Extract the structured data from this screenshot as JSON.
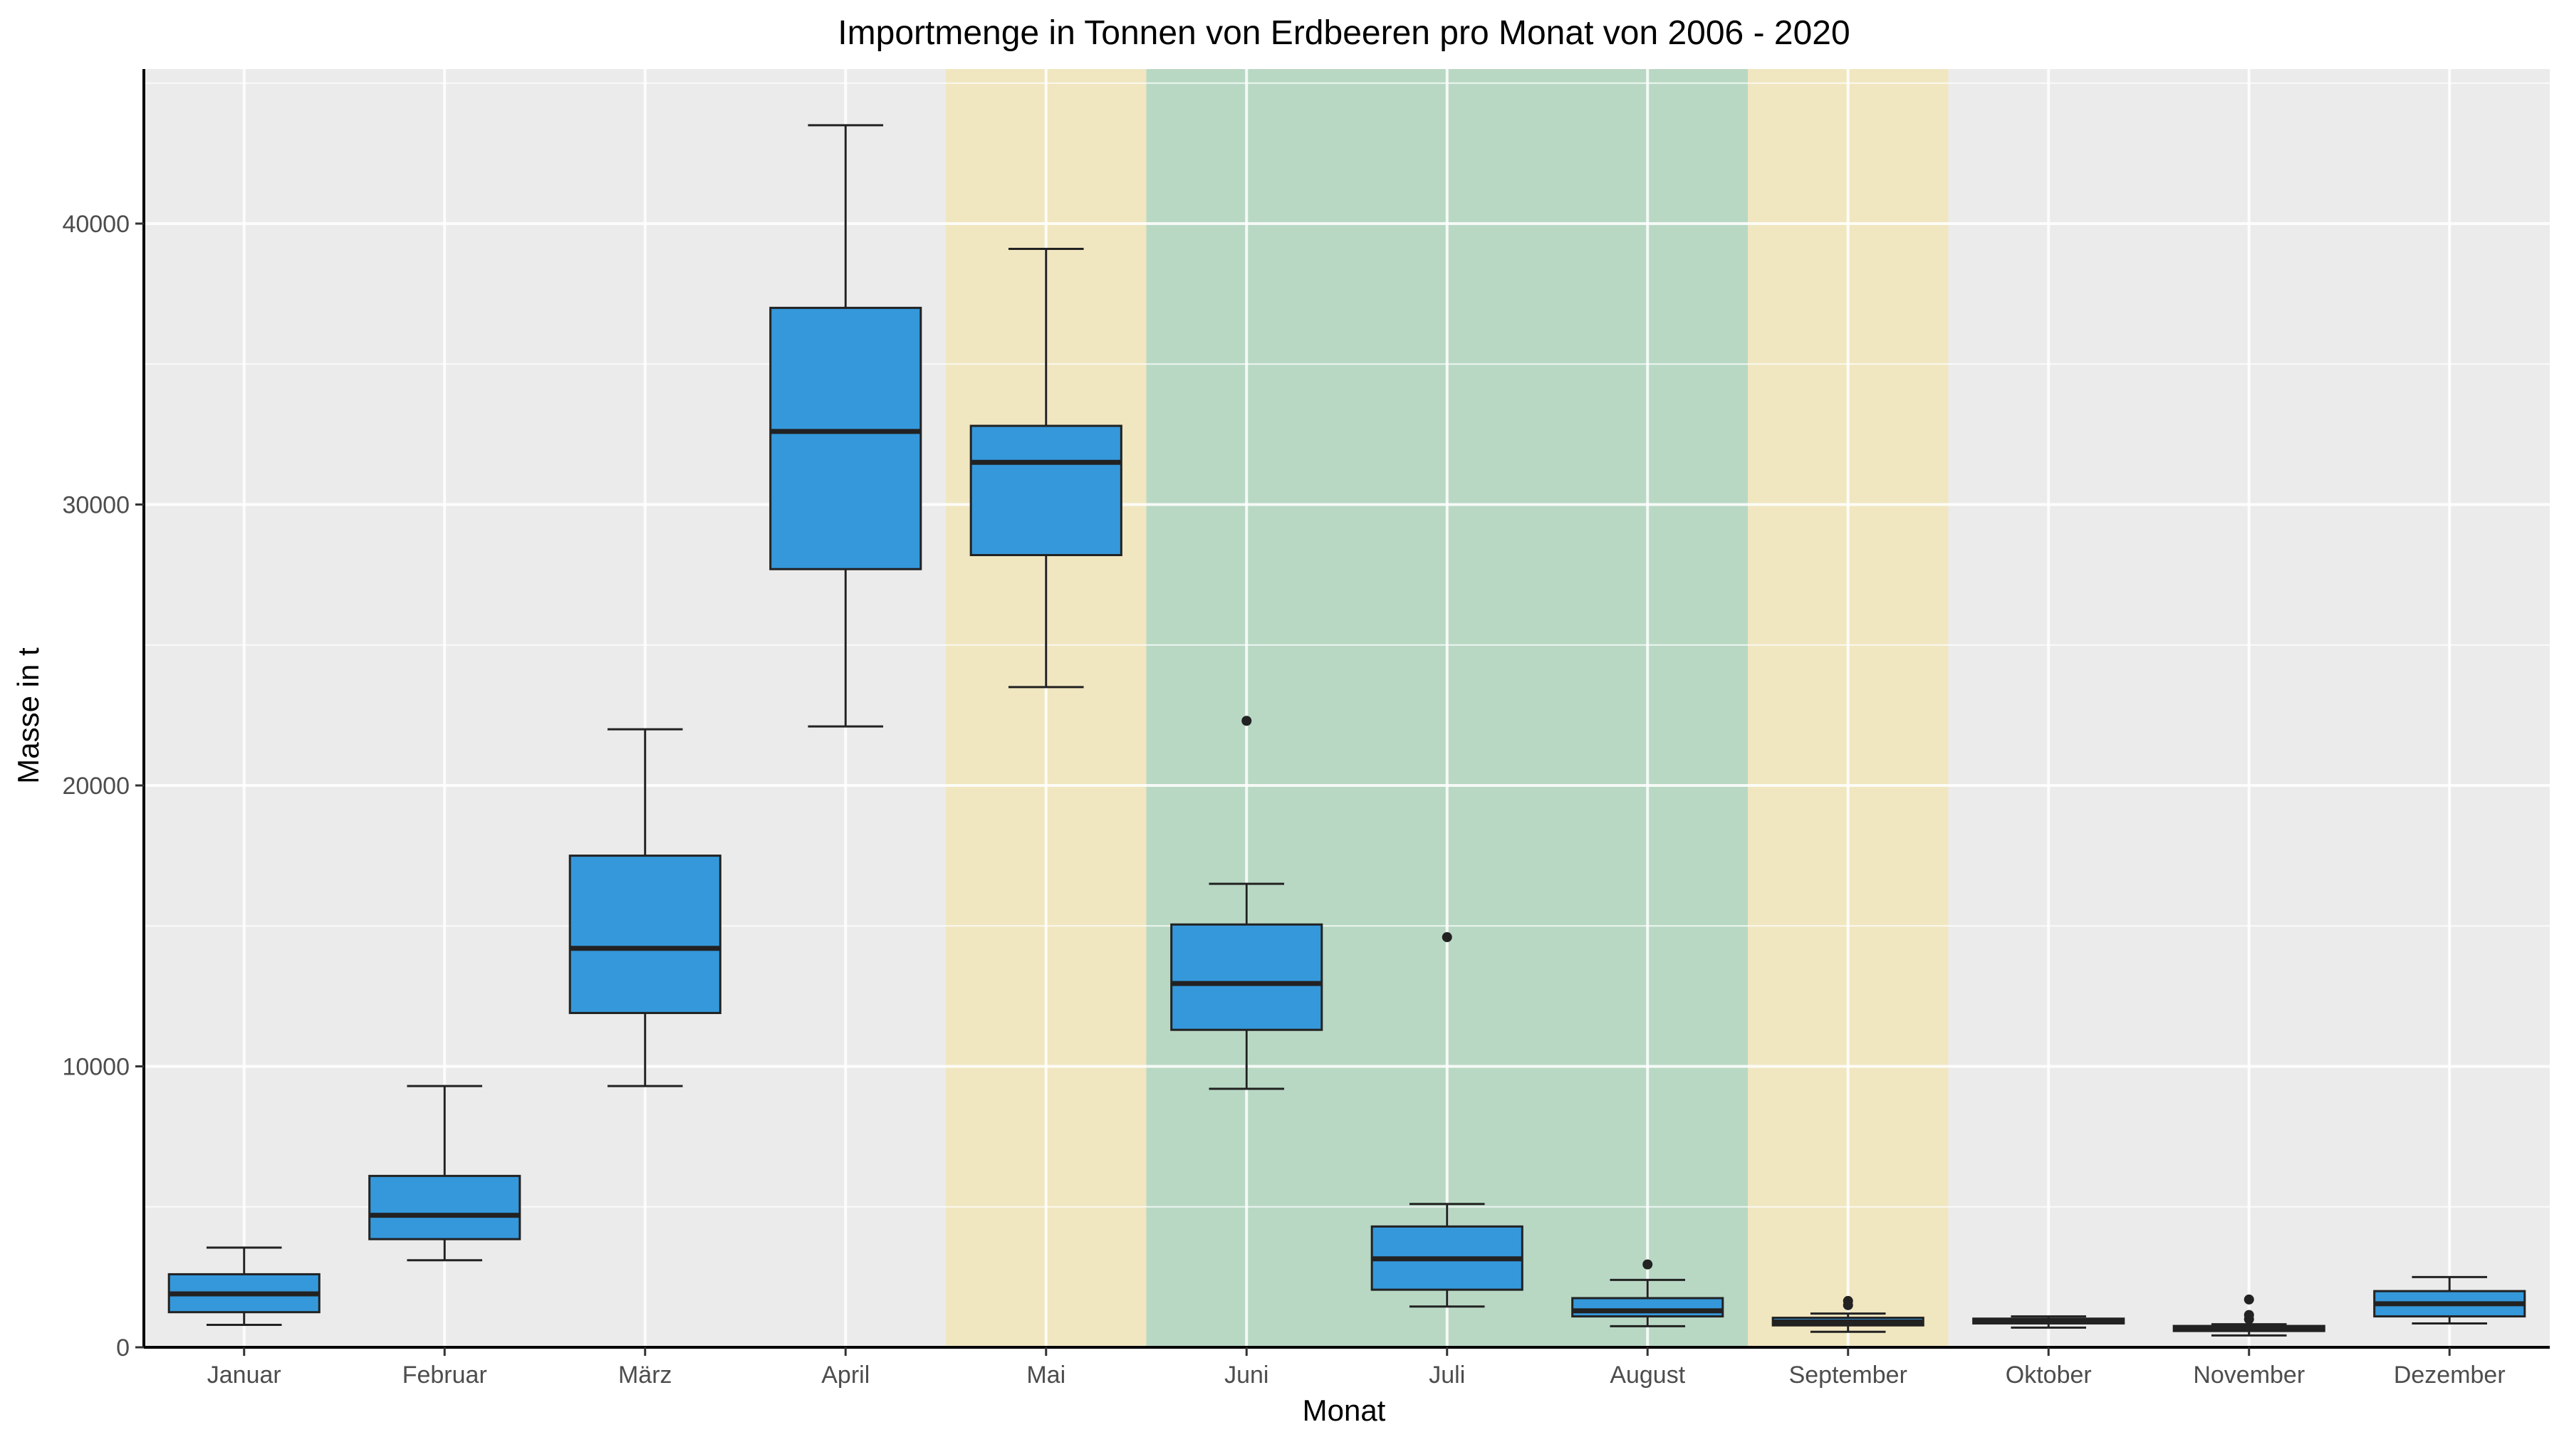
{
  "chart_data": {
    "type": "boxplot",
    "title": "Importmenge in Tonnen von Erdbeeren pro Monat von 2006 - 2020",
    "xlabel": "Monat",
    "ylabel": "Masse in t",
    "categories": [
      "Januar",
      "Februar",
      "März",
      "April",
      "Mai",
      "Juni",
      "Juli",
      "August",
      "September",
      "Oktober",
      "November",
      "Dezember"
    ],
    "ylim": [
      0,
      45500
    ],
    "yticks": [
      0,
      10000,
      20000,
      30000,
      40000
    ],
    "ytick_labels": [
      "0",
      "10000",
      "20000",
      "30000",
      "40000"
    ],
    "grid": true,
    "legend": "none",
    "boxes": [
      {
        "category": "Januar",
        "whisker_low": 800,
        "q1": 1250,
        "median": 1900,
        "q3": 2600,
        "whisker_high": 3550,
        "outliers": []
      },
      {
        "category": "Februar",
        "whisker_low": 3100,
        "q1": 3850,
        "median": 4700,
        "q3": 6100,
        "whisker_high": 9300,
        "outliers": []
      },
      {
        "category": "März",
        "whisker_low": 9300,
        "q1": 11900,
        "median": 14200,
        "q3": 17500,
        "whisker_high": 22000,
        "outliers": []
      },
      {
        "category": "April",
        "whisker_low": 22100,
        "q1": 27700,
        "median": 32600,
        "q3": 37000,
        "whisker_high": 43500,
        "outliers": []
      },
      {
        "category": "Mai",
        "whisker_low": 23500,
        "q1": 28200,
        "median": 31500,
        "q3": 32800,
        "whisker_high": 39100,
        "outliers": []
      },
      {
        "category": "Juni",
        "whisker_low": 9200,
        "q1": 11300,
        "median": 12950,
        "q3": 15050,
        "whisker_high": 16500,
        "outliers": [
          22300
        ]
      },
      {
        "category": "Juli",
        "whisker_low": 1450,
        "q1": 2050,
        "median": 3150,
        "q3": 4300,
        "whisker_high": 5100,
        "outliers": [
          14600
        ]
      },
      {
        "category": "August",
        "whisker_low": 750,
        "q1": 1100,
        "median": 1300,
        "q3": 1750,
        "whisker_high": 2400,
        "outliers": [
          2950
        ]
      },
      {
        "category": "September",
        "whisker_low": 550,
        "q1": 780,
        "median": 900,
        "q3": 1050,
        "whisker_high": 1200,
        "outliers": [
          1500,
          1650
        ]
      },
      {
        "category": "Oktober",
        "whisker_low": 700,
        "q1": 850,
        "median": 950,
        "q3": 1020,
        "whisker_high": 1100,
        "outliers": []
      },
      {
        "category": "November",
        "whisker_low": 420,
        "q1": 580,
        "median": 650,
        "q3": 760,
        "whisker_high": 820,
        "outliers": [
          1000,
          1150,
          1700
        ]
      },
      {
        "category": "Dezember",
        "whisker_low": 850,
        "q1": 1100,
        "median": 1550,
        "q3": 2000,
        "whisker_high": 2500,
        "outliers": []
      }
    ],
    "highlight_bands": [
      {
        "from": "Mai",
        "to": "Mai",
        "color": "#f0e6c0"
      },
      {
        "from": "Juni",
        "to": "August",
        "color": "#b8d8c4"
      },
      {
        "from": "September",
        "to": "September",
        "color": "#f0e6c0"
      }
    ],
    "colors": {
      "box_fill": "#3598db",
      "panel_bg": "#ebebeb",
      "grid": "#ffffff",
      "box_line": "#222222",
      "axis_line": "#000000"
    }
  }
}
